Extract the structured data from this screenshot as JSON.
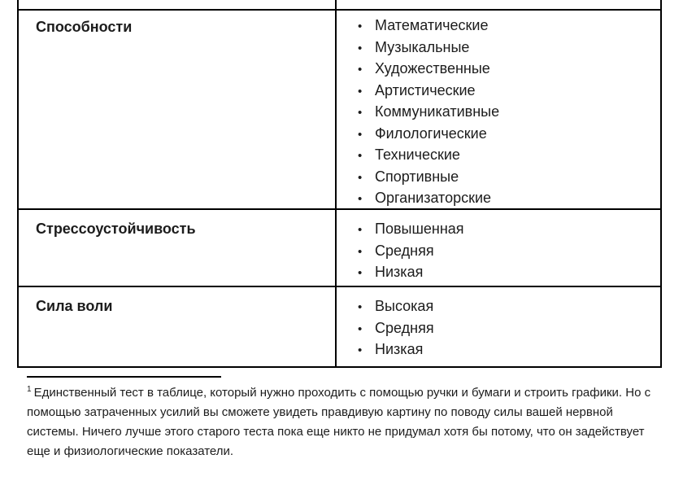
{
  "document": {
    "table": {
      "bullet": "•",
      "rows": [
        {
          "label": "Способности",
          "items": [
            "Математические",
            "Музыкальные",
            "Художественные",
            "Артистические",
            "Коммуникативные",
            "Филологические",
            "Технические",
            "Спортивные",
            "Организаторские"
          ]
        },
        {
          "label": "Стрессоустойчивость",
          "items": [
            "Повышенная",
            "Средняя",
            "Низкая"
          ]
        },
        {
          "label": "Сила воли",
          "items": [
            "Высокая",
            "Средняя",
            "Низкая"
          ]
        }
      ]
    },
    "footnote": {
      "marker": "1",
      "text": "Единственный тест в таблице, который нужно проходить с помощью ручки и бумаги и строить графики. Но с помощью затраченных усилий вы сможете увидеть правдивую картину по поводу силы вашей нервной системы. Ничего лучше этого старого теста пока еще никто не придумал хотя бы потому, что он задействует еще и физиологические показатели."
    },
    "colors": {
      "border": "#000000",
      "text": "#1c1c1c",
      "background": "#ffffff"
    }
  }
}
